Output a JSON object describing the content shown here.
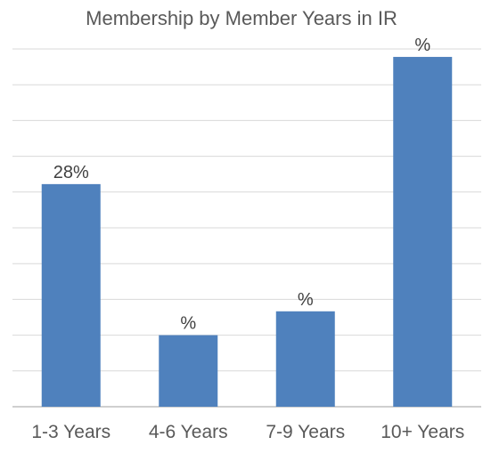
{
  "chart_data": {
    "type": "bar",
    "title": "Membership by Member Years in IR",
    "categories": [
      "1-3 Years",
      "4-6 Years",
      "7-9 Years",
      "10+ Years"
    ],
    "values": [
      28,
      9,
      12,
      44
    ],
    "data_labels": [
      "28%",
      "%",
      "%",
      "%"
    ],
    "ylim": [
      0,
      45
    ],
    "grid": true,
    "bar_color": "#4f81bd",
    "legend": "none"
  }
}
